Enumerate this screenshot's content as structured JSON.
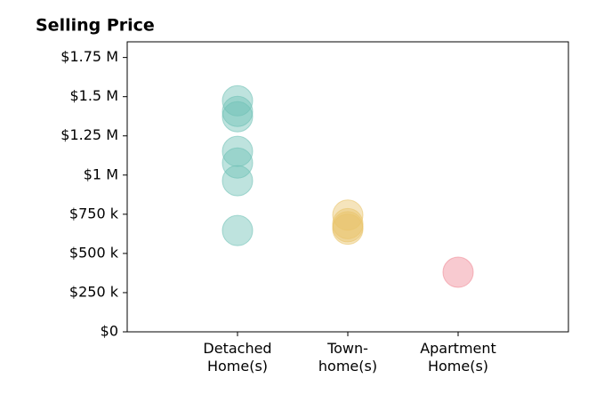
{
  "chart_data": {
    "type": "strip",
    "title": "Selling Price",
    "categories": [
      [
        "Detached",
        "Home(s)"
      ],
      [
        "Town-",
        "home(s)"
      ],
      [
        "Apartment",
        "Home(s)"
      ]
    ],
    "colors": [
      "#6fc1b6",
      "#e9c46a",
      "#f08a96"
    ],
    "values": [
      [
        1474000,
        1406000,
        1372000,
        1151000,
        1077000,
        964000,
        646000
      ],
      [
        745000,
        690000,
        670000,
        655000
      ],
      [
        380000
      ]
    ],
    "ylim": [
      0,
      1850000
    ],
    "yticks": [
      {
        "value": 0,
        "label": "$0"
      },
      {
        "value": 250000,
        "label": "$250 k"
      },
      {
        "value": 500000,
        "label": "$500 k"
      },
      {
        "value": 750000,
        "label": "$750 k"
      },
      {
        "value": 1000000,
        "label": "$1 M"
      },
      {
        "value": 1250000,
        "label": "$1.25 M"
      },
      {
        "value": 1500000,
        "label": "$1.5 M"
      },
      {
        "value": 1750000,
        "label": "$1.75 M"
      }
    ]
  }
}
